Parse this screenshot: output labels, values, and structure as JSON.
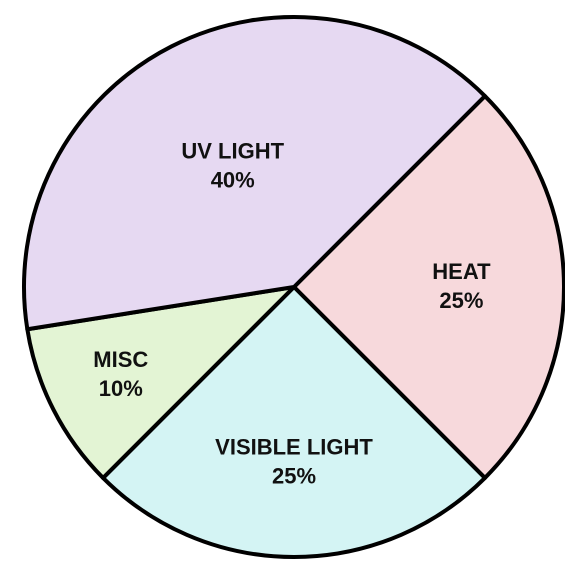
{
  "chart_data": {
    "type": "pie",
    "categories": [
      "HEAT",
      "VISIBLE LIGHT",
      "MISC",
      "UV LIGHT"
    ],
    "values": [
      25,
      25,
      10,
      40
    ],
    "value_labels": [
      "25%",
      "25%",
      "10%",
      "40%"
    ],
    "colors": [
      "#f7d9dc",
      "#d4f4f4",
      "#e3f4d4",
      "#e6d9f2"
    ]
  }
}
